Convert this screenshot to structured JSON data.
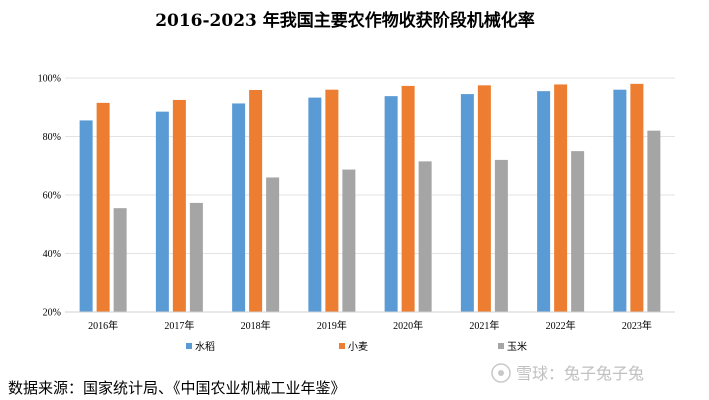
{
  "chart_data": {
    "type": "bar",
    "title": "2016-2023 年我国主要农作物收获阶段机械化率",
    "categories": [
      "2016年",
      "2017年",
      "2018年",
      "2019年",
      "2020年",
      "2021年",
      "2022年",
      "2023年"
    ],
    "series": [
      {
        "name": "水稻",
        "color": "#5B9BD5",
        "values": [
          85.5,
          88.5,
          91.3,
          93.3,
          93.8,
          94.5,
          95.5,
          96.0
        ]
      },
      {
        "name": "小麦",
        "color": "#ED7D31",
        "values": [
          91.5,
          92.5,
          95.9,
          96.0,
          97.3,
          97.5,
          97.8,
          98.0
        ]
      },
      {
        "name": "玉米",
        "color": "#A5A5A5",
        "values": [
          55.5,
          57.3,
          66.0,
          68.7,
          71.5,
          72.0,
          75.0,
          82.0
        ]
      }
    ],
    "ylim": [
      20,
      100
    ],
    "yticks": [
      "20%",
      "40%",
      "60%",
      "80%",
      "100%"
    ],
    "ytick_values": [
      20,
      40,
      60,
      80,
      100
    ],
    "grid": true,
    "legend_position": "bottom"
  },
  "source": "数据来源：国家统计局、《中国农业机械工业年鉴》",
  "watermark": "雪球：兔子兔子兔"
}
